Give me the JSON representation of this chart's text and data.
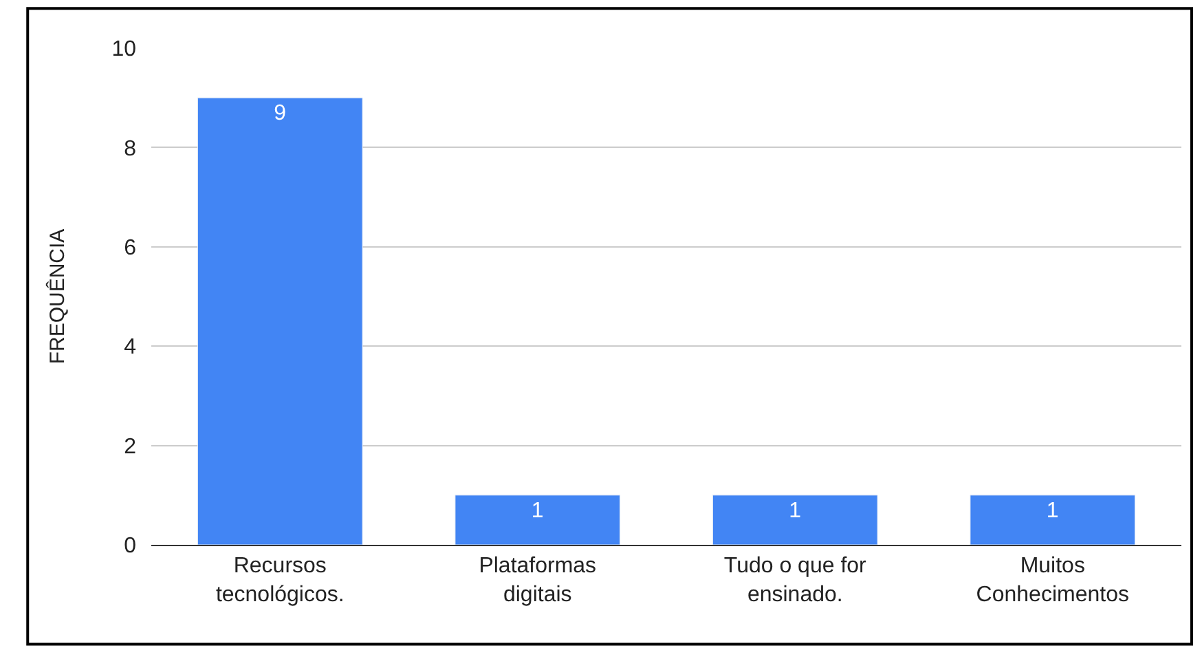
{
  "chart_data": {
    "type": "bar",
    "ylabel": "FREQUÊNCIA",
    "categories": [
      "Recursos\ntecnológicos.",
      "Plataformas\ndigitais",
      "Tudo o que for\nensinado.",
      "Muitos\nConhecimentos"
    ],
    "values": [
      9,
      1,
      1,
      1
    ],
    "color": "#4285f4",
    "ylim": [
      0,
      10
    ],
    "yticks": [
      0,
      2,
      4,
      6,
      8,
      10
    ],
    "grid": "y",
    "data_labels": true,
    "legend": false
  }
}
